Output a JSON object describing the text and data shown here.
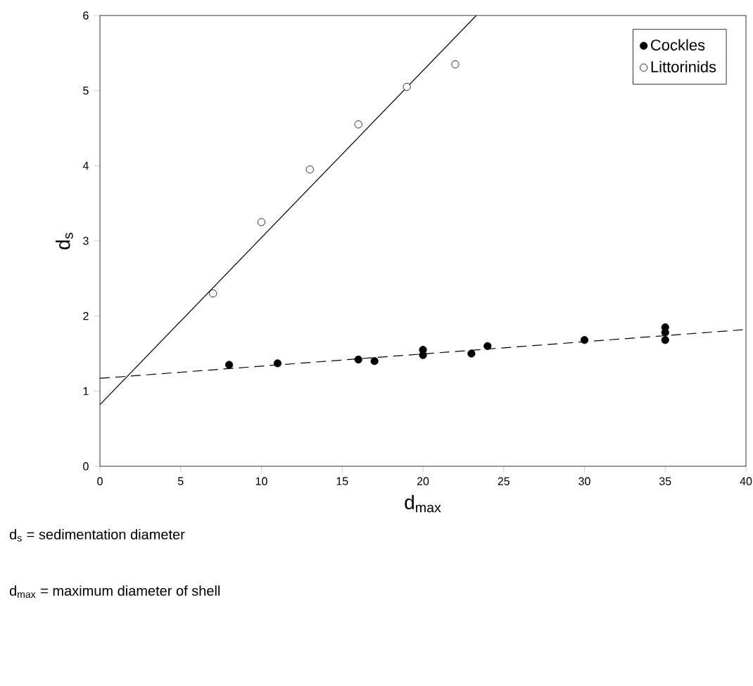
{
  "chart_data": {
    "type": "scatter",
    "xlabel": "d$_{max}$",
    "ylabel": "d$_{s}$",
    "xlim": [
      0,
      40
    ],
    "ylim": [
      0,
      6
    ],
    "xticks": [
      0,
      5,
      10,
      15,
      20,
      25,
      30,
      35,
      40
    ],
    "yticks": [
      0,
      1,
      2,
      3,
      4,
      5,
      6
    ],
    "legend": "top right",
    "series": [
      {
        "name": "Cockles",
        "color": "#000000",
        "marker": "circle",
        "x": [
          8,
          11,
          16,
          17,
          20,
          20,
          23,
          24,
          30,
          35,
          35,
          35
        ],
        "values": [
          1.35,
          1.37,
          1.42,
          1.4,
          1.48,
          1.55,
          1.5,
          1.6,
          1.68,
          1.68,
          1.78,
          1.85
        ]
      },
      {
        "name": "Littorinids",
        "color": "#ffffff",
        "marker": "circle",
        "x": [
          7,
          10,
          13,
          16,
          19,
          22
        ],
        "values": [
          2.3,
          3.25,
          3.95,
          4.55,
          5.05,
          5.35
        ]
      },
      {
        "type": "line",
        "color": "#000000",
        "marker": "none",
        "line_style": "solid",
        "x": [
          0,
          23.3
        ],
        "values": [
          0.82,
          6
        ]
      },
      {
        "type": "line",
        "color": "#000000",
        "marker": "none",
        "line_style": "dashed",
        "x": [
          0,
          40
        ],
        "values": [
          1.17,
          1.82
        ]
      }
    ],
    "annotations": [
      "d$_{s}$ = sedimentation diameter",
      "d$_{max}$ = maximum diameter of shell"
    ]
  }
}
